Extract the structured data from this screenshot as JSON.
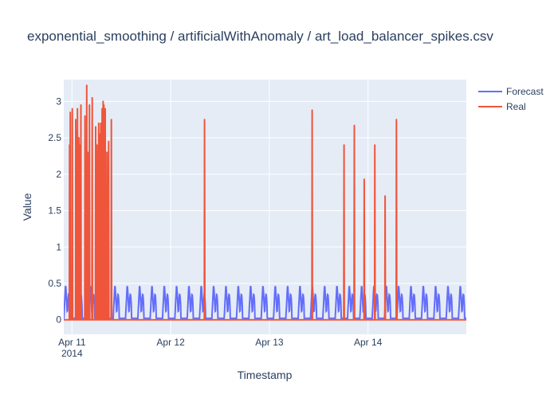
{
  "chart_data": {
    "type": "line",
    "title": "exponential_smoothing / artificialWithAnomaly / art_load_balancer_spikes.csv",
    "xlabel": "Timestamp",
    "ylabel": "Value",
    "x_range": [
      "2014-04-10T22:00",
      "2014-04-14T23:55"
    ],
    "y_range": [
      -0.2,
      3.3
    ],
    "x_ticks": [
      {
        "at": "2014-04-11T00:00",
        "label": "Apr 11",
        "sublabel": "2014"
      },
      {
        "at": "2014-04-12T00:00",
        "label": "Apr 12",
        "sublabel": ""
      },
      {
        "at": "2014-04-13T00:00",
        "label": "Apr 13",
        "sublabel": ""
      },
      {
        "at": "2014-04-14T00:00",
        "label": "Apr 14",
        "sublabel": ""
      }
    ],
    "y_ticks": [
      {
        "value": 0,
        "label": "0"
      },
      {
        "value": 0.5,
        "label": "0.5"
      },
      {
        "value": 1,
        "label": "1"
      },
      {
        "value": 1.5,
        "label": "1.5"
      },
      {
        "value": 2,
        "label": "2"
      },
      {
        "value": 2.5,
        "label": "2.5"
      },
      {
        "value": 3,
        "label": "3"
      }
    ],
    "grid": true,
    "legend_position": "top-right",
    "series": [
      {
        "name": "Forecast",
        "color": "#636efa",
        "pattern": "periodic",
        "period_hours": 3,
        "baseline": 0.0,
        "peak": 0.5
      },
      {
        "name": "Real",
        "color": "#ef553b",
        "baseline": 0.0,
        "spikes": [
          {
            "t": "2014-04-10T23:35",
            "v": 2.85
          },
          {
            "t": "2014-04-10T23:25",
            "v": 2.4
          },
          {
            "t": "2014-04-11T00:05",
            "v": 2.9
          },
          {
            "t": "2014-04-11T00:55",
            "v": 2.75
          },
          {
            "t": "2014-04-11T01:05",
            "v": 2.6
          },
          {
            "t": "2014-04-11T01:20",
            "v": 2.9
          },
          {
            "t": "2014-04-11T01:40",
            "v": 2.5
          },
          {
            "t": "2014-04-11T01:50",
            "v": 2.4
          },
          {
            "t": "2014-04-11T02:10",
            "v": 2.95
          },
          {
            "t": "2014-04-11T03:10",
            "v": 2.8
          },
          {
            "t": "2014-04-11T03:35",
            "v": 3.22
          },
          {
            "t": "2014-04-11T03:50",
            "v": 2.3
          },
          {
            "t": "2014-04-11T04:15",
            "v": 2.95
          },
          {
            "t": "2014-04-11T04:55",
            "v": 3.05
          },
          {
            "t": "2014-04-11T05:45",
            "v": 2.65
          },
          {
            "t": "2014-04-11T06:05",
            "v": 2.4
          },
          {
            "t": "2014-04-11T06:30",
            "v": 2.7
          },
          {
            "t": "2014-04-11T06:45",
            "v": 2.55
          },
          {
            "t": "2014-04-11T07:00",
            "v": 2.7
          },
          {
            "t": "2014-04-11T07:20",
            "v": 2.9
          },
          {
            "t": "2014-04-11T07:35",
            "v": 3.0
          },
          {
            "t": "2014-04-11T07:45",
            "v": 2.95
          },
          {
            "t": "2014-04-11T08:05",
            "v": 2.9
          },
          {
            "t": "2014-04-11T08:30",
            "v": 2.3
          },
          {
            "t": "2014-04-11T08:55",
            "v": 2.45
          },
          {
            "t": "2014-04-11T09:35",
            "v": 2.75
          },
          {
            "t": "2014-04-12T08:15",
            "v": 2.75
          },
          {
            "t": "2014-04-13T10:25",
            "v": 2.88
          },
          {
            "t": "2014-04-13T18:10",
            "v": 2.4
          },
          {
            "t": "2014-04-13T20:40",
            "v": 2.67
          },
          {
            "t": "2014-04-13T23:05",
            "v": 1.93
          },
          {
            "t": "2014-04-14T01:40",
            "v": 2.4
          },
          {
            "t": "2014-04-14T04:10",
            "v": 1.7
          },
          {
            "t": "2014-04-14T06:55",
            "v": 2.75
          }
        ]
      }
    ]
  }
}
